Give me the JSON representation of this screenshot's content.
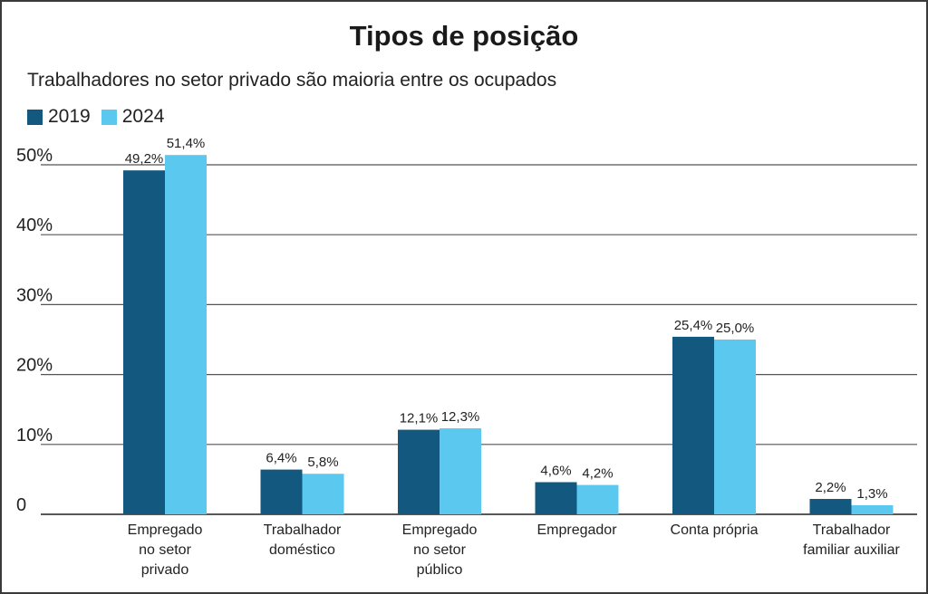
{
  "chart_data": {
    "type": "bar",
    "title": "Tipos de posição",
    "subtitle": "Trabalhadores no setor privado são maioria entre os ocupados",
    "xlabel": "",
    "ylabel": "",
    "ylim": [
      0,
      50
    ],
    "yticks": [
      {
        "value": 0,
        "label": "0"
      },
      {
        "value": 10,
        "label": "10%"
      },
      {
        "value": 20,
        "label": "20%"
      },
      {
        "value": 30,
        "label": "30%"
      },
      {
        "value": 40,
        "label": "40%"
      },
      {
        "value": 50,
        "label": "50%"
      }
    ],
    "grid": true,
    "legend_position": "top-left",
    "categories": [
      [
        "Empregado",
        "no setor",
        "privado"
      ],
      [
        "Trabalhador",
        "doméstico"
      ],
      [
        "Empregado",
        "no setor",
        "público"
      ],
      [
        "Empregador"
      ],
      [
        "Conta própria"
      ],
      [
        "Trabalhador",
        "familiar auxiliar"
      ]
    ],
    "series": [
      {
        "name": "2019",
        "color": "#12587f",
        "values": [
          49.2,
          6.4,
          12.1,
          4.6,
          25.4,
          2.2
        ],
        "labels": [
          "49,2%",
          "6,4%",
          "12,1%",
          "4,6%",
          "25,4%",
          "2,2%"
        ]
      },
      {
        "name": "2024",
        "color": "#5bc8f0",
        "values": [
          51.4,
          5.8,
          12.3,
          4.2,
          25.0,
          1.3
        ],
        "labels": [
          "51,4%",
          "5,8%",
          "12,3%",
          "4,2%",
          "25,0%",
          "1,3%"
        ]
      }
    ]
  }
}
